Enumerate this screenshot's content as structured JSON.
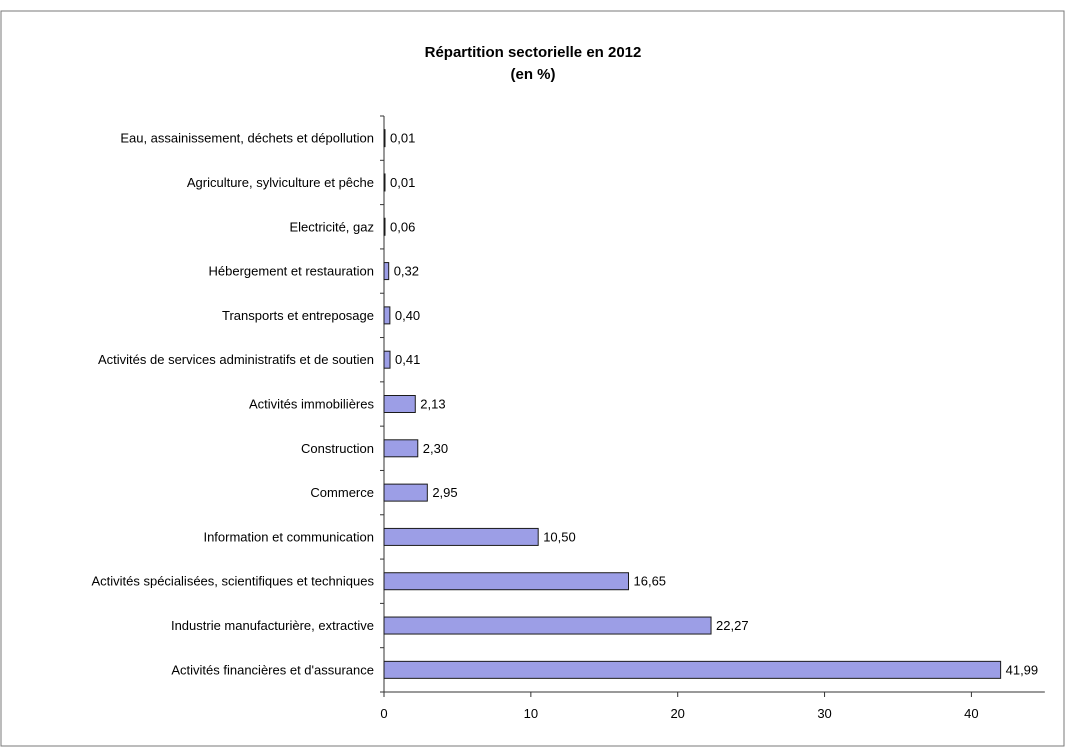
{
  "chart_data": {
    "type": "bar",
    "orientation": "horizontal",
    "title": "Répartition sectorielle en 2012",
    "subtitle": "(en %)",
    "categories": [
      "Eau, assainissement, déchets et dépollution",
      "Agriculture, sylviculture et pêche",
      "Electricité, gaz",
      "Hébergement et restauration",
      "Transports et entreposage",
      "Activités de services administratifs et de soutien",
      "Activités immobilières",
      "Construction",
      "Commerce",
      "Information et communication",
      "Activités spécialisées, scientifiques et techniques",
      "Industrie manufacturière, extractive",
      "Activités financières et d'assurance"
    ],
    "values": [
      0.01,
      0.01,
      0.06,
      0.32,
      0.4,
      0.41,
      2.13,
      2.3,
      2.95,
      10.5,
      16.65,
      22.27,
      41.99
    ],
    "value_labels": [
      "0,01",
      "0,01",
      "0,06",
      "0,32",
      "0,40",
      "0,41",
      "2,13",
      "2,30",
      "2,95",
      "10,50",
      "16,65",
      "22,27",
      "41,99"
    ],
    "x_ticks": [
      0,
      10,
      20,
      30,
      40
    ],
    "xlim": [
      0,
      45
    ],
    "xlabel": "",
    "ylabel": "",
    "grid": false,
    "legend": "none",
    "colors": {
      "bar_fill": "#9c9ee6",
      "bar_stroke": "#1a1a1a",
      "axis": "#333333",
      "frame": "#7a7a7a",
      "text": "#000000"
    }
  }
}
